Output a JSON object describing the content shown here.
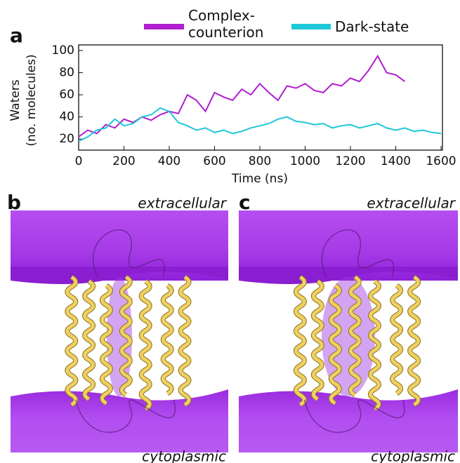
{
  "chart_data": {
    "type": "line",
    "panel_label": "a",
    "ylabel": [
      "Waters",
      "(no. molecules)"
    ],
    "xlabel": "Time (ns)",
    "x": [
      0,
      40,
      80,
      120,
      160,
      200,
      240,
      280,
      320,
      360,
      400,
      440,
      480,
      520,
      560,
      600,
      640,
      680,
      720,
      760,
      800,
      840,
      880,
      920,
      960,
      1000,
      1040,
      1080,
      1120,
      1160,
      1200,
      1240,
      1280,
      1320,
      1360,
      1400,
      1440,
      1480,
      1520,
      1560,
      1600
    ],
    "series": [
      {
        "name": "Complex-counterion",
        "color": "#b01ed0",
        "values": [
          22,
          28,
          25,
          33,
          30,
          38,
          35,
          40,
          37,
          42,
          45,
          43,
          60,
          55,
          45,
          62,
          58,
          55,
          65,
          60,
          70,
          62,
          55,
          68,
          66,
          70,
          64,
          62,
          70,
          68,
          75,
          72,
          82,
          95,
          80,
          78,
          72,
          null,
          null,
          null,
          null
        ]
      },
      {
        "name": "Dark-state",
        "color": "#1ec8d8",
        "values": [
          18,
          22,
          28,
          30,
          38,
          32,
          34,
          40,
          42,
          48,
          45,
          35,
          32,
          28,
          30,
          26,
          28,
          25,
          27,
          30,
          32,
          34,
          38,
          40,
          36,
          35,
          33,
          34,
          30,
          32,
          33,
          30,
          32,
          34,
          30,
          28,
          30,
          27,
          28,
          26,
          25
        ]
      }
    ],
    "xlim": [
      0,
      1600
    ],
    "xticks": [
      0,
      200,
      400,
      600,
      800,
      1000,
      1200,
      1400,
      1600
    ],
    "ylim": [
      10,
      100
    ],
    "yticks": [
      20,
      40,
      60,
      80,
      100
    ]
  },
  "panels": [
    {
      "label": "b",
      "top": "extracellular",
      "bottom": "cytoplasmic"
    },
    {
      "label": "c",
      "top": "extracellular",
      "bottom": "cytoplasmic"
    }
  ]
}
